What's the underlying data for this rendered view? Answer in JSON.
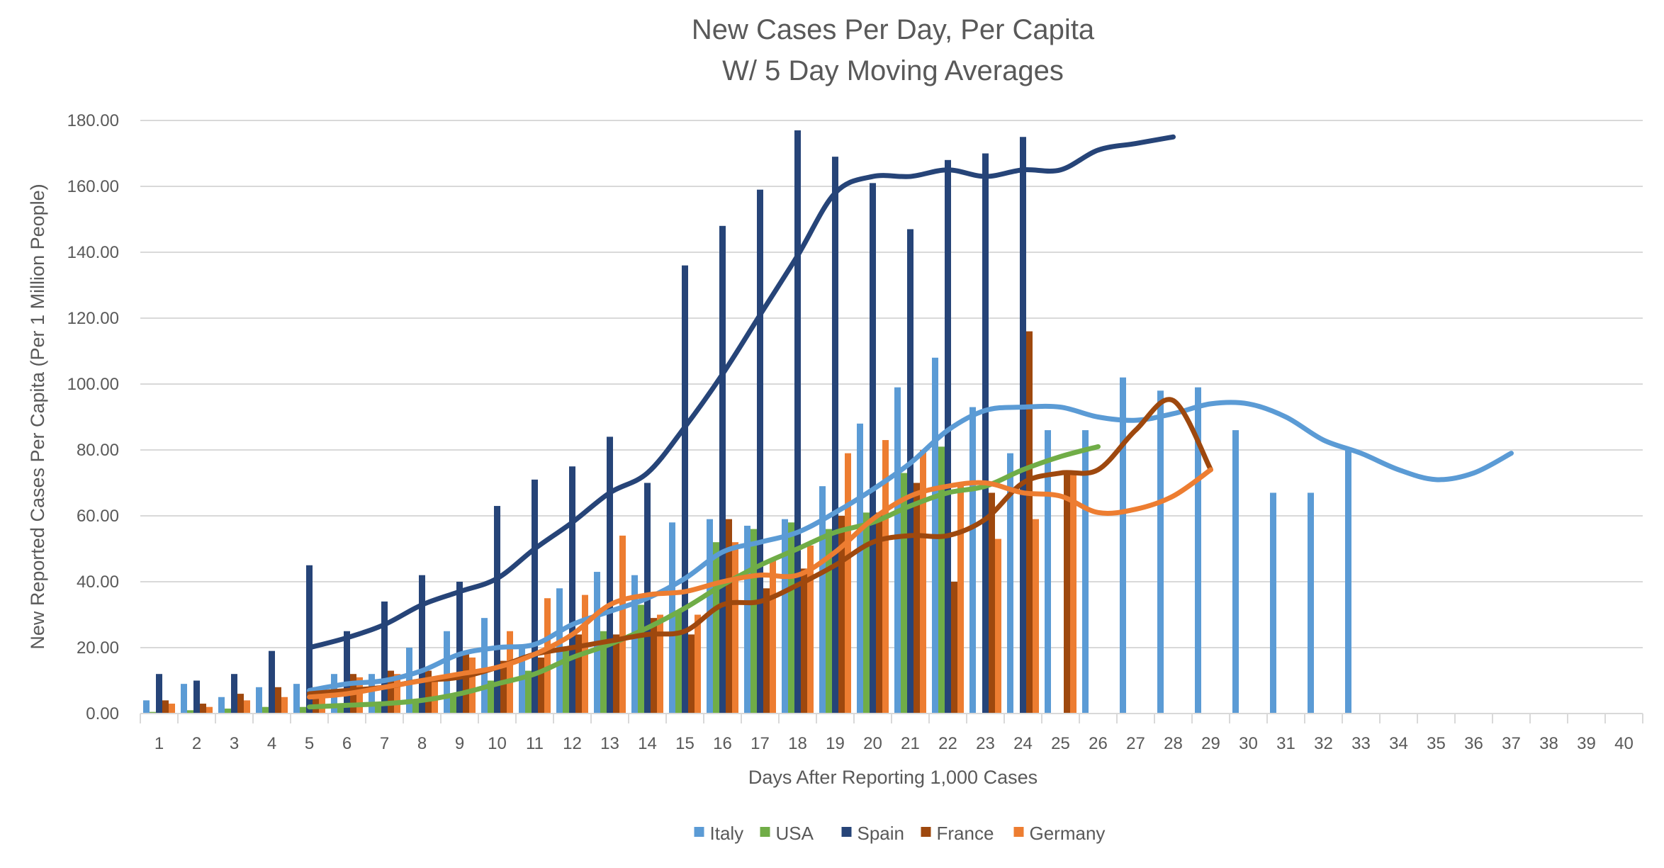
{
  "chart_data": {
    "type": "bar",
    "title": "New Cases Per Day, Per Capita",
    "subtitle": "W/ 5 Day Moving Averages",
    "xlabel": "Days After Reporting 1,000 Cases",
    "ylabel": "New Reported Cases Per Capita (Per 1 Million People)",
    "ylim": [
      0,
      180
    ],
    "yticks": [
      "0.00",
      "20.00",
      "40.00",
      "60.00",
      "80.00",
      "100.00",
      "120.00",
      "140.00",
      "160.00",
      "180.00"
    ],
    "categories": [
      "1",
      "2",
      "3",
      "4",
      "5",
      "6",
      "7",
      "8",
      "9",
      "10",
      "11",
      "12",
      "13",
      "14",
      "15",
      "16",
      "17",
      "18",
      "19",
      "20",
      "21",
      "22",
      "23",
      "24",
      "25",
      "26",
      "27",
      "28",
      "29",
      "30",
      "31",
      "32",
      "33",
      "34",
      "35",
      "36",
      "37",
      "38",
      "39",
      "40"
    ],
    "grid": true,
    "legend_position": "bottom",
    "series": [
      {
        "name": "Italy",
        "color": "#5B9BD5",
        "values": [
          4,
          9,
          5,
          8,
          9,
          12,
          12,
          20,
          25,
          29,
          21,
          38,
          43,
          42,
          58,
          59,
          57,
          59,
          69,
          88,
          99,
          108,
          93,
          79,
          86,
          86,
          102,
          98,
          99,
          86,
          67,
          67,
          80,
          null,
          null,
          null,
          null,
          null,
          null,
          null
        ],
        "moving_average": [
          null,
          null,
          null,
          null,
          7,
          9,
          10,
          13,
          18,
          20,
          21,
          27,
          31,
          35,
          41,
          49,
          52,
          55,
          61,
          68,
          76,
          86,
          92,
          93,
          93,
          90,
          89,
          91,
          94,
          94,
          90,
          83,
          79,
          74,
          71,
          73,
          79,
          null,
          null,
          null
        ]
      },
      {
        "name": "USA",
        "color": "#70AD47",
        "values": [
          0.5,
          1,
          1.5,
          2,
          2,
          2.5,
          3,
          4,
          6,
          10,
          13,
          19,
          25,
          33,
          31,
          52,
          56,
          58,
          56,
          61,
          73,
          81,
          null,
          null,
          null,
          null,
          null,
          null,
          null,
          null,
          null,
          null,
          null,
          null,
          null,
          null,
          null,
          null,
          null,
          null
        ],
        "moving_average": [
          null,
          null,
          null,
          null,
          2,
          2.5,
          3,
          4,
          6,
          9,
          12,
          17,
          21,
          26,
          32,
          39,
          45,
          50,
          55,
          58,
          63,
          67,
          69,
          74,
          78,
          81,
          null,
          null,
          null,
          null,
          null,
          null,
          null,
          null,
          null,
          null,
          null,
          null,
          null,
          null
        ]
      },
      {
        "name": "Spain",
        "color": "#264478",
        "values": [
          12,
          10,
          12,
          19,
          45,
          25,
          34,
          42,
          40,
          63,
          71,
          75,
          84,
          70,
          136,
          148,
          159,
          177,
          169,
          161,
          147,
          168,
          170,
          175,
          null,
          null,
          null,
          null,
          null,
          null,
          null,
          null,
          null,
          null,
          null,
          null,
          null,
          null,
          null,
          null
        ],
        "moving_average": [
          null,
          null,
          null,
          null,
          20,
          23,
          27,
          33,
          37,
          41,
          50,
          58,
          67,
          73,
          87,
          103,
          121,
          139,
          158,
          163,
          163,
          165,
          163,
          165,
          165,
          171,
          173,
          175,
          null,
          null,
          null,
          null,
          null,
          null,
          null,
          null,
          null,
          null,
          null,
          null
        ]
      },
      {
        "name": "France",
        "color": "#9E480E",
        "values": [
          4,
          3,
          6,
          8,
          8,
          12,
          13,
          13,
          18,
          16,
          17,
          24,
          24,
          29,
          24,
          59,
          38,
          44,
          60,
          61,
          70,
          40,
          67,
          116,
          73,
          null,
          null,
          null,
          null,
          null,
          null,
          null,
          null,
          null,
          null,
          null,
          null,
          null,
          null,
          null
        ],
        "moving_average": [
          null,
          null,
          null,
          null,
          6,
          7,
          8,
          10,
          11,
          14,
          18,
          20,
          22,
          24,
          25,
          33,
          34,
          39,
          45,
          52,
          54,
          54,
          59,
          70,
          73,
          74,
          86,
          95,
          74,
          null,
          null,
          null,
          null,
          null,
          null,
          null,
          null,
          null,
          null,
          null
        ]
      },
      {
        "name": "Germany",
        "color": "#ED7D31",
        "values": [
          3,
          2,
          4,
          5,
          6,
          11,
          12,
          10,
          17,
          25,
          35,
          36,
          54,
          30,
          30,
          52,
          47,
          51,
          79,
          83,
          80,
          70,
          53,
          59,
          73,
          null,
          null,
          null,
          null,
          null,
          null,
          null,
          null,
          null,
          null,
          null,
          null,
          null,
          null,
          null
        ],
        "moving_average": [
          null,
          null,
          null,
          null,
          5,
          6,
          8,
          10,
          12,
          14,
          18,
          24,
          33,
          36,
          37,
          40,
          42,
          42,
          49,
          59,
          66,
          69,
          70,
          67,
          66,
          61,
          62,
          66,
          74,
          null,
          null,
          null,
          null,
          null,
          null,
          null,
          null,
          null,
          null,
          null
        ]
      }
    ]
  }
}
